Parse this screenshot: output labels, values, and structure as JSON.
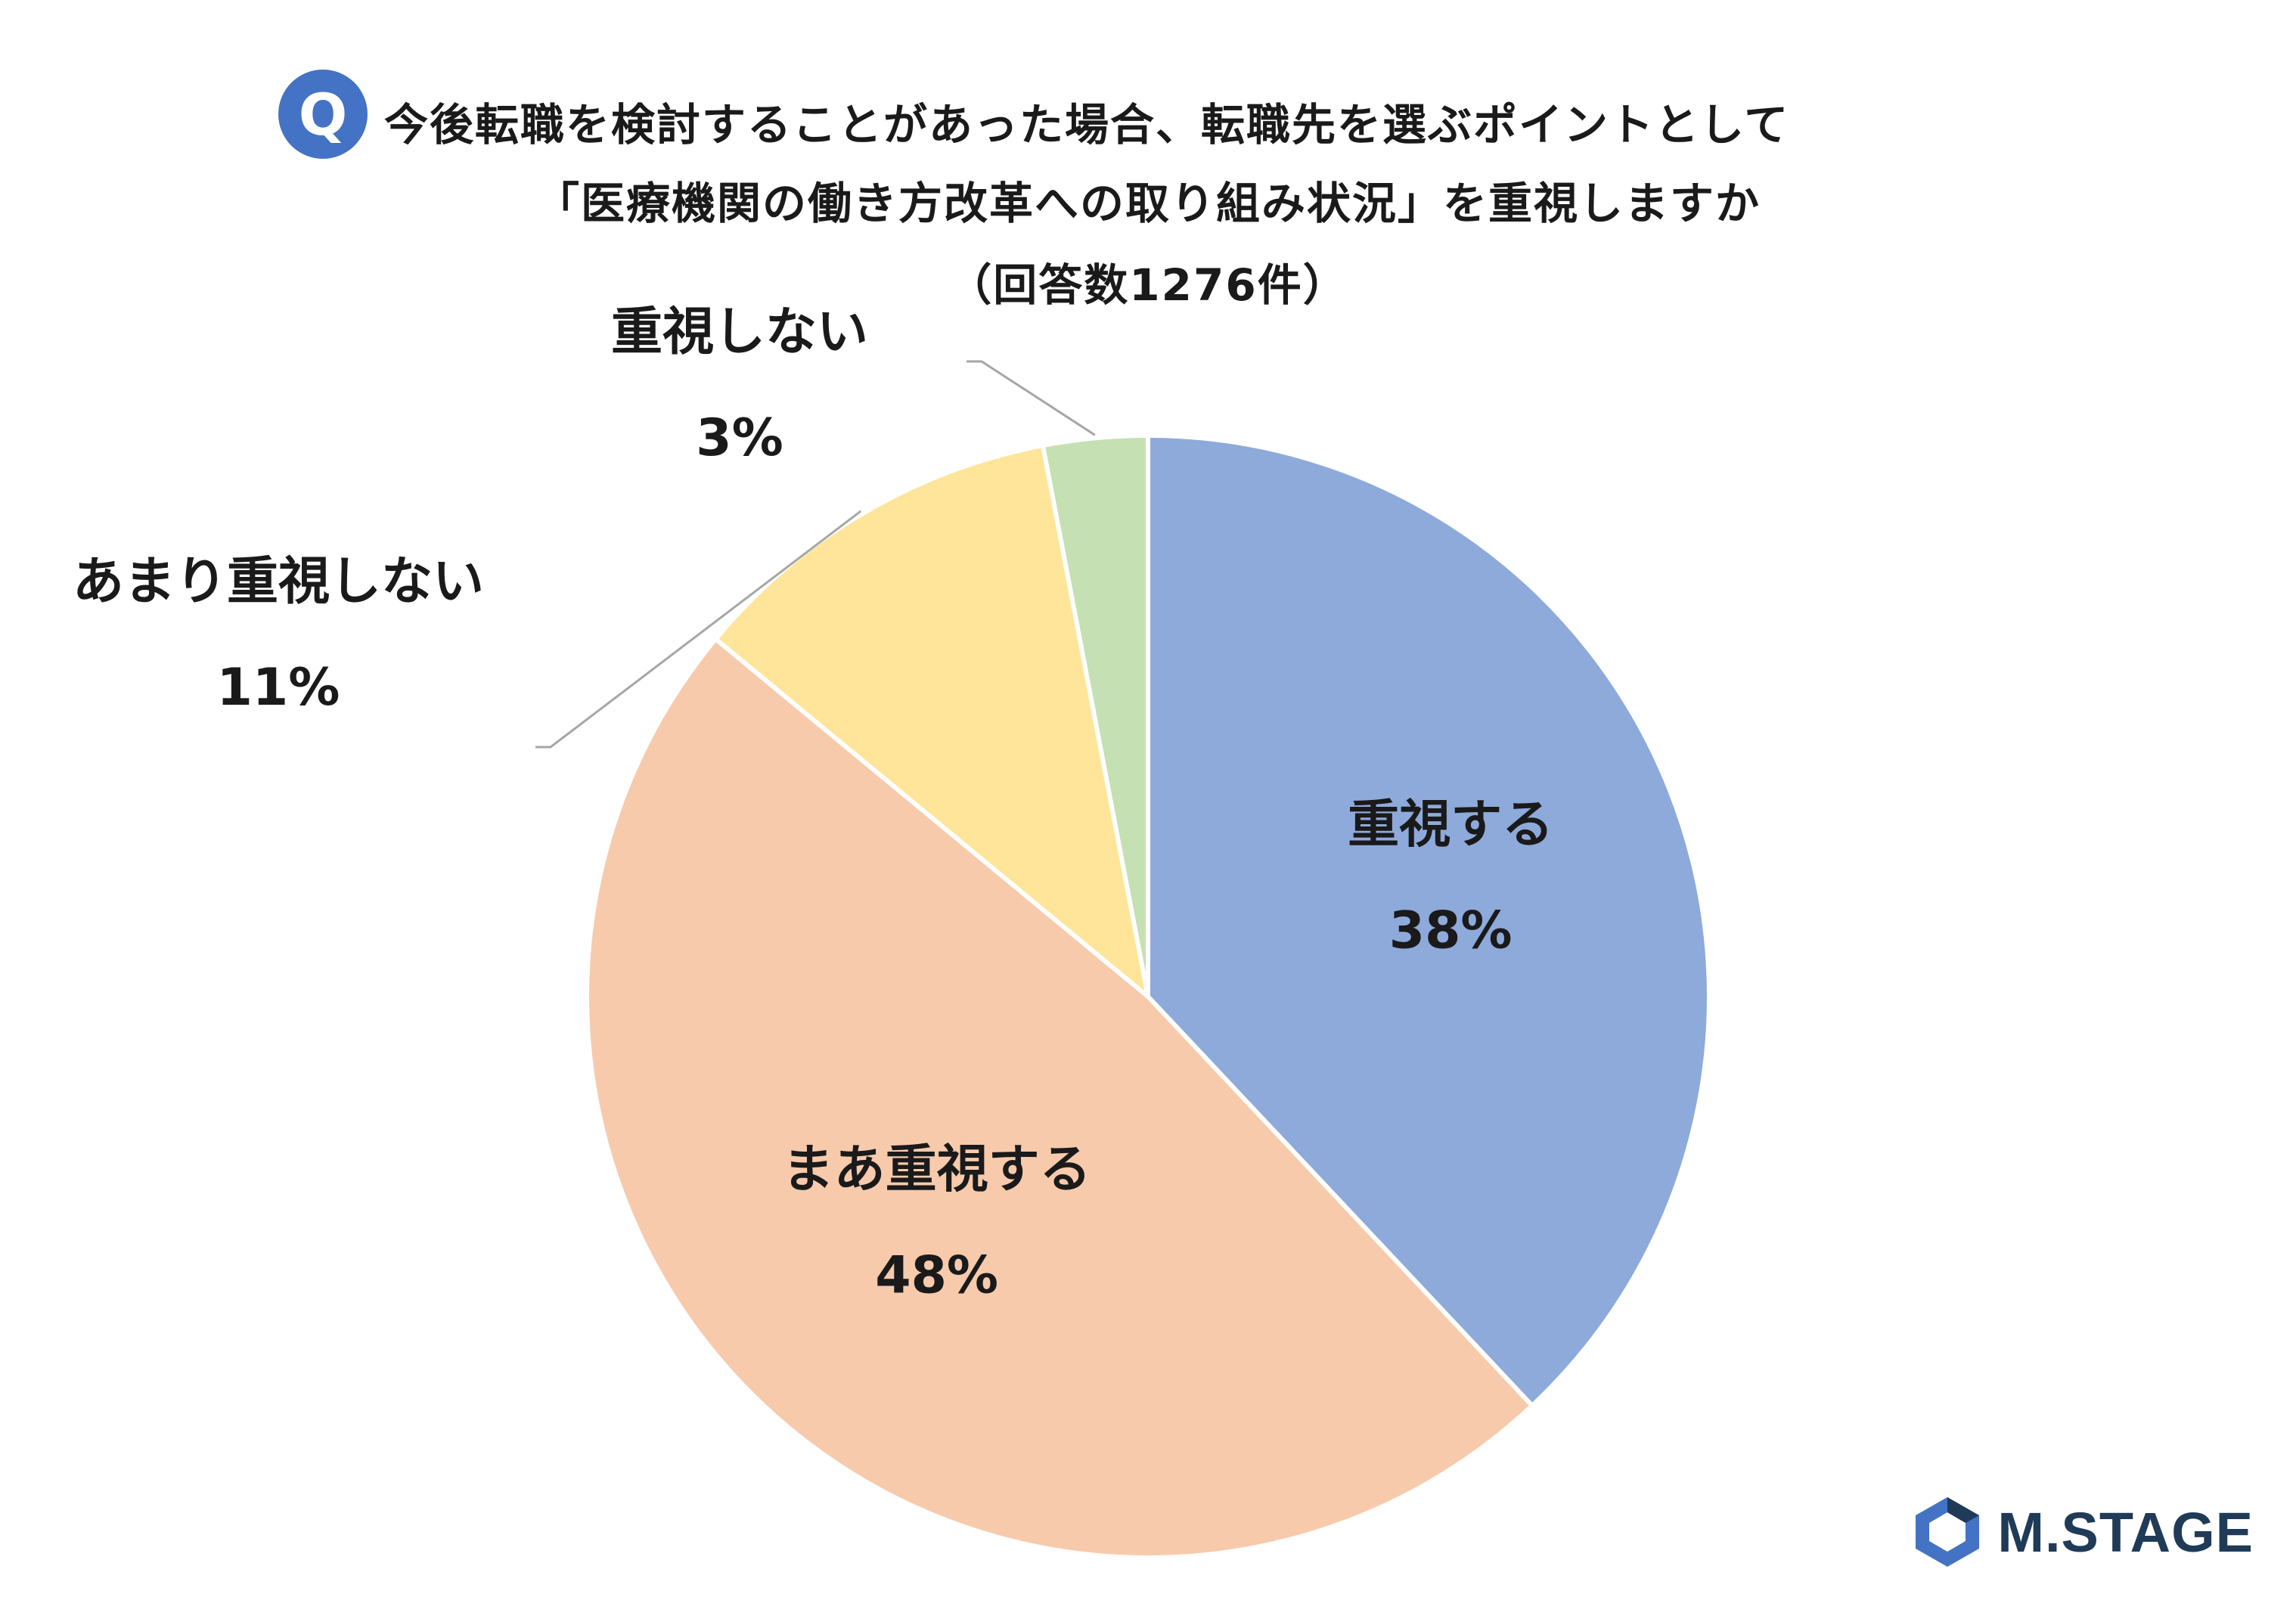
{
  "header": {
    "badge": "Q",
    "line1": "今後転職を検討することがあった場合、転職先を選ぶポイントとして",
    "line2": "「医療機関の働き方改革への取り組み状況」を重視しますか",
    "line3": "（回答数1276件）"
  },
  "chart_data": {
    "type": "pie",
    "title": "今後転職を検討することがあった場合、転職先を選ぶポイントとして「医療機関の働き方改革への取り組み状況」を重視しますか",
    "subtitle": "（回答数1276件）",
    "slices": [
      {
        "label": "重視する",
        "value": 38,
        "display": "38%",
        "color": "#8eaadb"
      },
      {
        "label": "まあ重視する",
        "value": 48,
        "display": "48%",
        "color": "#f7caac"
      },
      {
        "label": "あまり重視しない",
        "value": 11,
        "display": "11%",
        "color": "#ffe599"
      },
      {
        "label": "重視しない",
        "value": 3,
        "display": "3%",
        "color": "#c5e0b3"
      }
    ],
    "start": "12 o'clock",
    "direction": "clockwise"
  },
  "logo": {
    "text": "M.STAGE",
    "color": "#1f3b57",
    "accent": "#4472c4"
  }
}
